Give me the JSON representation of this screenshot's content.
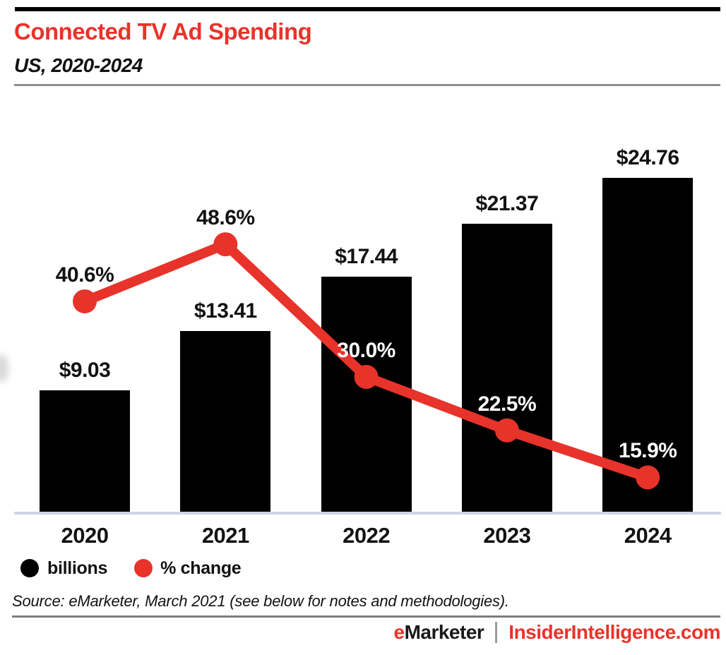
{
  "header": {
    "title": "Connected TV Ad Spending",
    "subtitle": "US, 2020-2024"
  },
  "chart_data": {
    "type": "combo",
    "title": "Connected TV Ad Spending",
    "subtitle": "US, 2020-2024",
    "categories": [
      "2020",
      "2021",
      "2022",
      "2023",
      "2024"
    ],
    "series": [
      {
        "name": "billions",
        "chart": "bar",
        "values": [
          9.03,
          13.41,
          17.44,
          21.37,
          24.76
        ],
        "labels": [
          "$9.03",
          "$13.41",
          "$17.44",
          "$21.37",
          "$24.76"
        ],
        "color": "#000000"
      },
      {
        "name": "% change",
        "chart": "line",
        "values": [
          40.6,
          48.6,
          30.0,
          22.5,
          15.9
        ],
        "labels": [
          "40.6%",
          "48.6%",
          "30.0%",
          "22.5%",
          "15.9%"
        ],
        "color": "#e8332b"
      }
    ],
    "value_prefix": "$",
    "units": "billions",
    "grid": false,
    "legend_position": "bottom",
    "accent_color": "#e8332b",
    "baseline_color": "#cdd5e6"
  },
  "legend": {
    "items": [
      {
        "label": "billions",
        "color": "#000000"
      },
      {
        "label": "% change",
        "color": "#e8332b"
      }
    ]
  },
  "source": "Source: eMarketer, March 2021 (see below for notes and methodologies).",
  "footer": {
    "brand_e": "e",
    "brand_rest": "Marketer",
    "separator": "|",
    "site": "InsiderIntelligence.com"
  }
}
